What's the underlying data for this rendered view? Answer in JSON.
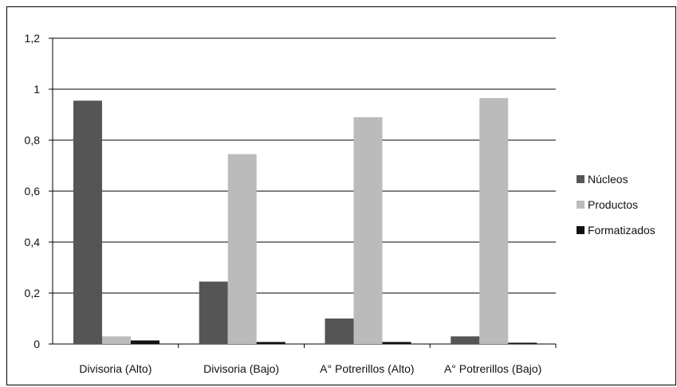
{
  "chart_data": {
    "type": "bar",
    "title": "",
    "xlabel": "",
    "ylabel": "",
    "categories": [
      "Divisoria (Alto)",
      "Divisoria (Bajo)",
      "A° Potrerillos (Alto)",
      "A° Potrerillos (Bajo)"
    ],
    "series": [
      {
        "name": "Núcleos",
        "color": "#555555",
        "values": [
          0.955,
          0.245,
          0.1,
          0.03
        ]
      },
      {
        "name": "Productos",
        "color": "#bbbbbb",
        "values": [
          0.03,
          0.745,
          0.89,
          0.965
        ]
      },
      {
        "name": "Formatizados",
        "color": "#111111",
        "values": [
          0.014,
          0.008,
          0.008,
          0.005
        ]
      }
    ],
    "ylim": [
      0,
      1.2
    ],
    "yticks": [
      "0",
      "0,2",
      "0,4",
      "0,6",
      "0,8",
      "1",
      "1,2"
    ],
    "grid": true,
    "legend": "right"
  }
}
